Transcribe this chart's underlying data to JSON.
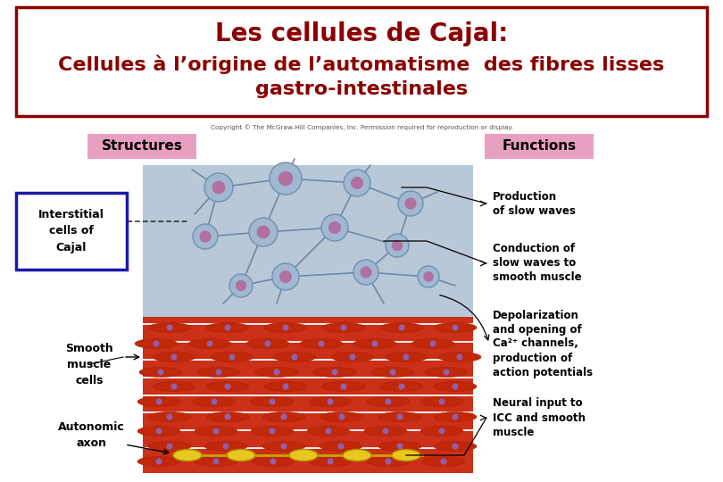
{
  "title_line1": "Les cellules de Cajal:",
  "title_line2": "Cellules à l’origine de l’automatisme  des fibres lisses",
  "title_line3": "gastro-intestinales",
  "title_color": "#8B0000",
  "title_box_border_color": "#8B0000",
  "bg_color": "#ffffff",
  "title_fontsize": 20,
  "subtitle_fontsize": 16,
  "copyright_text": "Copyright © The McGraw-Hill Companies, Inc. Permission required for reproduction or display.",
  "structures_label": "Structures",
  "functions_label": "Functions",
  "structures_bg": "#e8a0c0",
  "functions_bg": "#e8a0c0",
  "label_interstitial": "Interstitial\ncells of\nCajal",
  "label_smooth": "Smooth\nmuscle\ncells",
  "label_autonomic": "Autonomic\naxon",
  "func1": "Production\nof slow waves",
  "func2": "Conduction of\nslow waves to\nsmooth muscle",
  "func3": "Depolarization\nand opening of\nCa²⁺ channels,\nproduction of\naction potentials",
  "func4": "Neural input to\nICC and smooth\nmuscle",
  "icc_bg": "#b8c8d8",
  "muscle_bg": "#cc3018",
  "axon_color": "#e8c820",
  "cell_body_color": "#a0b8d0",
  "cell_edge_color": "#7090b0",
  "nucleus_color": "#b070a0",
  "muscle_fiber_color": "#c02808",
  "muscle_nucleus_color": "#9060b0",
  "white_color": "#ffffff",
  "process_color": "#7088a8"
}
